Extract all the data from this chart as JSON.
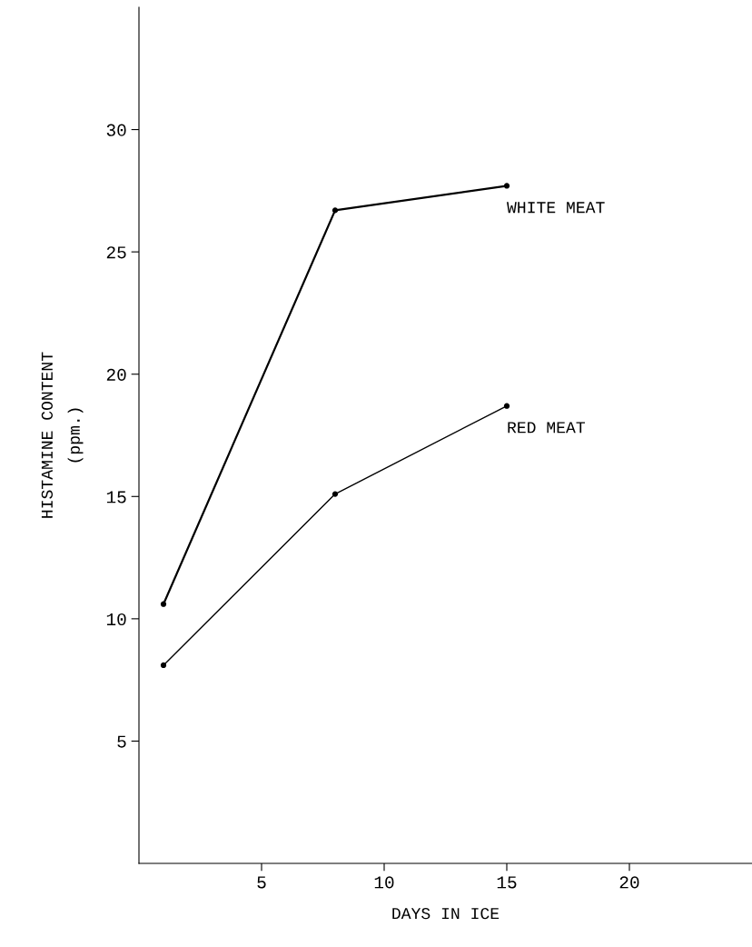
{
  "chart_data": {
    "type": "line",
    "xlabel": "DAYS IN ICE",
    "ylabel": "HISTAMINE CONTENT\n(ppm.)",
    "series": [
      {
        "name": "WHITE MEAT",
        "color": "#000000",
        "x": [
          1,
          8,
          15
        ],
        "values": [
          10.6,
          26.7,
          27.7
        ]
      },
      {
        "name": "RED MEAT",
        "color": "#000000",
        "x": [
          1,
          8,
          15
        ],
        "values": [
          8.1,
          15.1,
          18.7
        ]
      }
    ],
    "xlim": [
      0,
      25
    ],
    "xticks": [
      5,
      10,
      15,
      20
    ],
    "ylim": [
      0,
      35
    ],
    "yticks": [
      5,
      10,
      15,
      20,
      25,
      30
    ],
    "grid": false,
    "legend": false,
    "marker": "circle",
    "line_style": "solid"
  }
}
